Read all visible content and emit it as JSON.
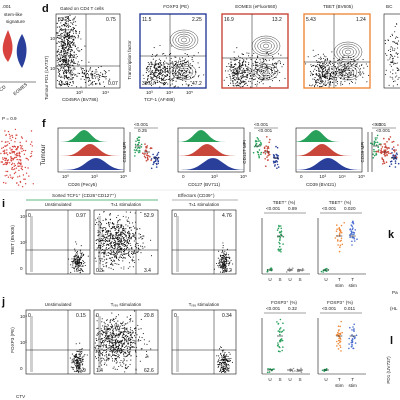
{
  "left_strip": {
    "top_fragment": ".001",
    "label_line1": "stem-like",
    "label_line2": "signature",
    "p_label": "P = 0.9",
    "x_cats": [
      "CD",
      "EOMES"
    ]
  },
  "panel_d": {
    "letter": "d",
    "gate_title": "Gated on CD4 T cells",
    "ylabel": "Tumour PD1 (UV737)",
    "xlabel": "CD45RA (BV786)",
    "quads": [
      "83.2",
      "0.75",
      "15.9",
      "0.07"
    ],
    "pd1_ticks": [
      "10³",
      "10⁴"
    ],
    "cd45_ticks": [
      "10³",
      "10⁴"
    ],
    "tf_ylabel": "Transcription factor",
    "tcf_xlabel": "TCF-1 (AF488)",
    "tcf_ticks": [
      "10³",
      "10⁴",
      "10⁵"
    ],
    "sub": [
      {
        "title": "FOXP3 (PE)",
        "color": "#2a3f9a",
        "q": [
          "11.5",
          "2.25",
          "38.9",
          "47.2"
        ]
      },
      {
        "title": "EOMES (eFluor660)",
        "color": "#c9473a",
        "q": [
          "16.9",
          "13.2",
          "",
          ""
        ]
      },
      {
        "title": "TBET (BV605)",
        "color": "#f08a3c",
        "q": [
          "5.43",
          "1.24",
          "",
          ""
        ]
      },
      {
        "title": "BC",
        "color": "#333333",
        "q": [
          "",
          "",
          "",
          ""
        ]
      }
    ]
  },
  "panel_f": {
    "letter": "f",
    "row_label": "Tumour",
    "plots": [
      {
        "xlabel": "CD26 (Pecy5)",
        "ylabel": "CD26 MFI",
        "p": "<0.001",
        "p2": "0.25"
      },
      {
        "xlabel": "CD127 (BV711)",
        "ylabel": "CD127 MFI",
        "p": "<0.001",
        "p2": "<0.001"
      },
      {
        "xlabel": "CD39 (BV421)",
        "ylabel": "CD39 MFI",
        "p": "<0.001",
        "p2": "<0.001"
      }
    ],
    "ticks_a": [
      "10⁰",
      "10³",
      "10⁵"
    ],
    "ticks_b": [
      "0",
      "10³",
      "10⁵"
    ],
    "ticks_c": [
      "0",
      "10³",
      "10⁴",
      "10⁵"
    ],
    "ticks_d": [
      "0",
      "10³",
      "10⁴",
      "10⁵"
    ],
    "partial_label": "<0."
  },
  "panel_i": {
    "letter": "i",
    "sorted_title": "Sorted TCF1⁺ (CD26⁺CD127⁺)",
    "effector_title": "Effectors (CD39⁺)",
    "ylabel": "TBET (BV605)",
    "col_titles": [
      "Unstimulated",
      "T_H1 stimulation",
      "T_H1 stimulation"
    ],
    "quads": [
      [
        "0",
        "0.97",
        "",
        "0"
      ],
      [
        "",
        "52.9",
        "0.3",
        "3.4"
      ],
      [
        "0",
        "4.76",
        "",
        "95.2"
      ]
    ],
    "bottom_left_pcts": [
      "",
      "",
      ""
    ],
    "stat1_title": "TBET⁺ (%)",
    "stat1_p": [
      "<0.001",
      "0.89"
    ],
    "stat2_title": "TBET⁺ (%)",
    "stat2_p": [
      "<0.001",
      "0.020"
    ],
    "cats1": [
      "U",
      "S",
      "U",
      "S"
    ],
    "cats2": [
      "U",
      "T_H1 stim",
      "T stim"
    ]
  },
  "panel_j": {
    "letter": "j",
    "ylabel": "FOXP3 (PE)",
    "xlabel": "CTV",
    "col_titles": [
      "Unstimulated",
      "T_reg stimulation",
      "T_reg stimulation"
    ],
    "quads": [
      [
        "0",
        "0.15",
        "",
        "99.9"
      ],
      [
        "0",
        "20.8",
        "1.4",
        "62.6"
      ],
      [
        "0",
        "0.34",
        "",
        "3.4"
      ]
    ],
    "stat1_title": "FOXP3⁺ (%)",
    "stat1_p": [
      "<0.001",
      "0.32"
    ],
    "stat2_title": "FOXP3⁺ (%)",
    "stat2_p": [
      "<0.001",
      "0.011"
    ],
    "cats1": [
      "U",
      "S",
      "U",
      "S"
    ],
    "cats2": [
      "U",
      "T_reg stim",
      "T stim"
    ]
  },
  "right_edge": {
    "k_letter": "k",
    "l_letter": "l",
    "fragments": [
      "Pa",
      "(HL",
      "1",
      "PD1 (UV737)"
    ]
  },
  "colors": {
    "foxp3_blue": "#2a3f9a",
    "eomes_red": "#c9473a",
    "tbet_orange": "#f08a3c",
    "green": "#27a05a",
    "gray": "#9a9a9a",
    "blue_dots": "#4a6fd0"
  }
}
